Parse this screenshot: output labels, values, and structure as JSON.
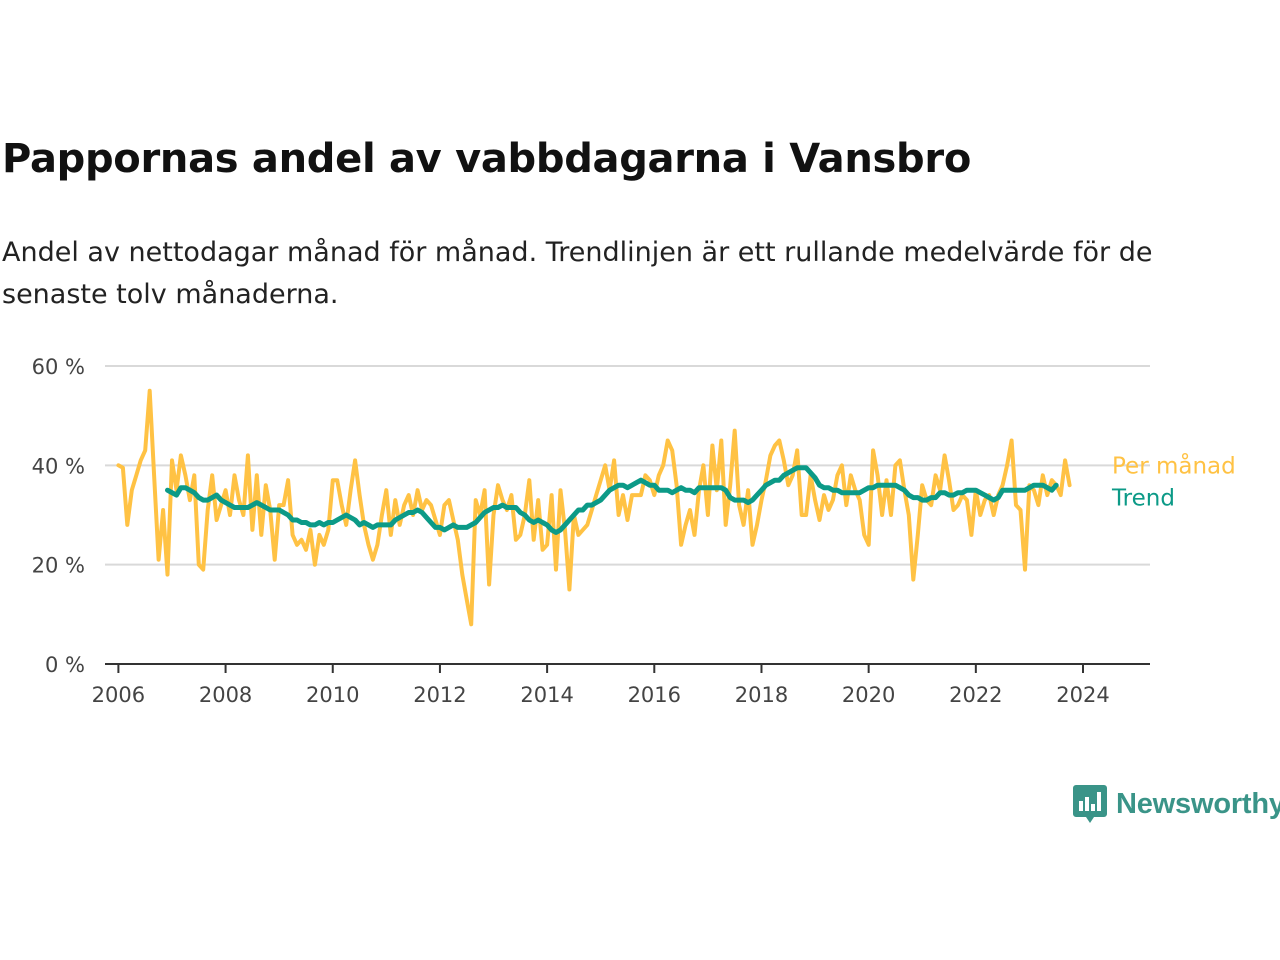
{
  "title": "Pappornas andel av vabbdagarna i Vansbro",
  "subtitle": "Andel av nettodagar månad för månad. Trendlinjen är ett rullande medelvärde för de senaste tolv månaderna.",
  "brand": {
    "name": "Newsworthy",
    "icon": "newsworthy-logo-icon",
    "color": "#3a9488"
  },
  "colors": {
    "monthly": "#ffc244",
    "trend": "#0c9a87",
    "grid": "#d9d9d9",
    "axis": "#333333"
  },
  "chart_data": {
    "type": "line",
    "title": "Pappornas andel av vabbdagarna i Vansbro",
    "xlabel": "",
    "ylabel": "",
    "xlim": [
      2005.75,
      2025.25
    ],
    "ylim": [
      0,
      60
    ],
    "x_ticks": [
      2006,
      2008,
      2010,
      2012,
      2014,
      2016,
      2018,
      2020,
      2022,
      2024
    ],
    "y_ticks": [
      0,
      20,
      40,
      60
    ],
    "y_tick_labels": [
      "0 %",
      "20 %",
      "40 %",
      "60 %"
    ],
    "grid": true,
    "series": [
      {
        "name": "Per månad",
        "color": "#ffc244",
        "x_start": "2006-01",
        "y": [
          40,
          39.5,
          28,
          35,
          38,
          41,
          43,
          55,
          38,
          21,
          31,
          18,
          41,
          35,
          42,
          38,
          33,
          38,
          20,
          19,
          31,
          38,
          29,
          32,
          35,
          30,
          38,
          33,
          30,
          42,
          27,
          38,
          26,
          36,
          31,
          21,
          32,
          32,
          37,
          26,
          24,
          25,
          23,
          27,
          20,
          26,
          24,
          27,
          37,
          37,
          32,
          28,
          35,
          41,
          34,
          28,
          24,
          21,
          24,
          30,
          35,
          26,
          33,
          28,
          32,
          34,
          30,
          35,
          31,
          33,
          32,
          29,
          26,
          32,
          33,
          29,
          25,
          18,
          13,
          8,
          33,
          30,
          35,
          16,
          30,
          36,
          33,
          31,
          34,
          25,
          26,
          30,
          37,
          25,
          33,
          23,
          24,
          34,
          19,
          35,
          27,
          15,
          30,
          26,
          27,
          28,
          31,
          34,
          37,
          40,
          35,
          41,
          30,
          34,
          29,
          34,
          34,
          34,
          38,
          37,
          34,
          38,
          40,
          45,
          43,
          36,
          24,
          28,
          31,
          26,
          35,
          40,
          30,
          44,
          35,
          45,
          28,
          36,
          47,
          32,
          28,
          35,
          24,
          28,
          33,
          37,
          42,
          44,
          45,
          41,
          36,
          38,
          43,
          30,
          30,
          38,
          33,
          29,
          34,
          31,
          33,
          38,
          40,
          32,
          38,
          35,
          33,
          26,
          24,
          43,
          38,
          30,
          37,
          30,
          40,
          41,
          35,
          30,
          17,
          26,
          36,
          33,
          32,
          38,
          35,
          42,
          37,
          31,
          32,
          34,
          33,
          26,
          35,
          30,
          33,
          34,
          30,
          34,
          36,
          40,
          45,
          32,
          31,
          19,
          36,
          35,
          32,
          38,
          34,
          37,
          36,
          34,
          41,
          36
        ]
      },
      {
        "name": "Trend",
        "color": "#0c9a87",
        "x_start": "2006-12",
        "y": [
          35,
          34.5,
          34,
          35.5,
          35.5,
          35,
          34.5,
          33.5,
          33,
          33,
          33.5,
          34,
          33,
          32.5,
          32,
          31.5,
          31.5,
          31.5,
          31.5,
          32,
          32.5,
          32,
          31.5,
          31,
          31,
          31,
          30.5,
          30,
          29,
          29,
          28.5,
          28.5,
          28,
          28,
          28.5,
          28,
          28.5,
          28.5,
          29,
          29.5,
          30,
          29.5,
          29,
          28,
          28.5,
          28,
          27.5,
          28,
          28,
          28,
          28,
          29,
          29.5,
          30,
          30.5,
          30.5,
          31,
          30.5,
          29.5,
          28.5,
          27.5,
          27.5,
          27,
          27.5,
          28,
          27.5,
          27.5,
          27.5,
          28,
          28.5,
          29.5,
          30.5,
          31,
          31.5,
          31.5,
          32,
          31.5,
          31.5,
          31.5,
          30.5,
          30,
          29,
          28.5,
          29,
          28.5,
          28,
          27,
          26.5,
          27,
          28,
          29,
          30,
          31,
          31,
          32,
          32,
          32.5,
          33,
          34,
          35,
          35.5,
          36,
          36,
          35.5,
          36,
          36.5,
          37,
          36.5,
          36,
          36,
          35,
          35,
          35,
          34.5,
          35,
          35.5,
          35,
          35,
          34.5,
          35.5,
          35.5,
          35.5,
          35.5,
          35.5,
          35.5,
          35,
          33.5,
          33,
          33,
          33,
          32.5,
          33,
          34,
          35,
          36,
          36.5,
          37,
          37,
          38,
          38.5,
          39,
          39.5,
          39.5,
          39.5,
          38.5,
          37.5,
          36,
          35.5,
          35.5,
          35,
          35,
          34.5,
          34.5,
          34.5,
          34.5,
          34.5,
          35,
          35.5,
          35.5,
          36,
          36,
          36,
          36,
          36,
          35.5,
          35,
          34,
          33.5,
          33.5,
          33,
          33,
          33.5,
          33.5,
          34.5,
          34.5,
          34,
          34,
          34.5,
          34.5,
          35,
          35,
          35,
          34.5,
          34,
          33.5,
          33,
          33.5,
          35,
          35,
          35,
          35,
          35,
          35,
          35.5,
          36,
          36,
          36,
          35.5,
          35,
          36
        ]
      }
    ]
  }
}
